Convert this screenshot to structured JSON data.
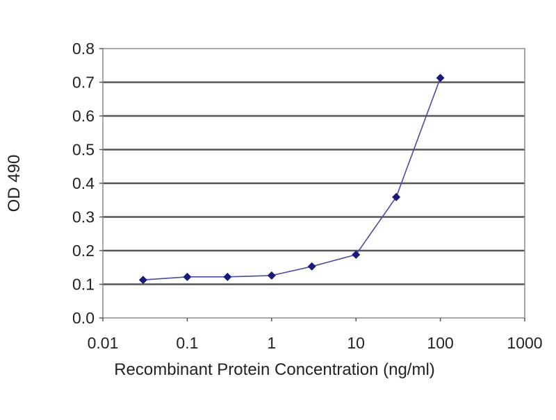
{
  "chart_data": {
    "type": "line",
    "title": "",
    "xlabel": "Recombinant Protein Concentration (ng/ml)",
    "ylabel": "OD 490",
    "x_scale": "log",
    "xlim": [
      0.01,
      1000
    ],
    "ylim": [
      0,
      0.8
    ],
    "x_ticks": [
      "0.01",
      "0.1",
      "1",
      "10",
      "100",
      "1000"
    ],
    "y_ticks": [
      "0.0",
      "0.1",
      "0.2",
      "0.3",
      "0.4",
      "0.5",
      "0.6",
      "0.7",
      "0.8"
    ],
    "grid": "horizontal",
    "legend": "none",
    "series": [
      {
        "color": "#1a1a7a",
        "marker": "diamond",
        "x": [
          0.03,
          0.1,
          0.3,
          1,
          3,
          10,
          30,
          100
        ],
        "y": [
          0.113,
          0.122,
          0.122,
          0.126,
          0.153,
          0.188,
          0.359,
          0.713
        ]
      }
    ]
  }
}
